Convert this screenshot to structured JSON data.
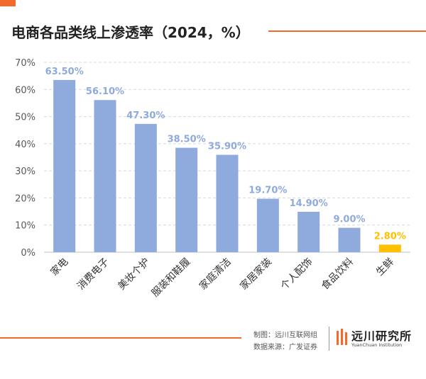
{
  "header": {
    "title": "电商各品类线上渗透率（2024，%）"
  },
  "colors": {
    "accent": "#f26b2b",
    "bar": "#8faadc",
    "bar_highlight": "#ffc000",
    "data_label": "#8faadc",
    "data_label_highlight": "#ffc000",
    "grid": "#d9d9d9",
    "axis_text": "#595959"
  },
  "footer": {
    "credit_line1": "制图：远川互联网组",
    "credit_line2": "数据来源：广发证券",
    "logo_icon": "yuanchuan-logo-icon",
    "logo_name": "远川研究所",
    "logo_sub": "YuanChuan Institution"
  },
  "chart_data": {
    "type": "bar",
    "title": "电商各品类线上渗透率（2024，%）",
    "xlabel": "",
    "ylabel": "",
    "categories": [
      "家电",
      "消费电子",
      "美妆个护",
      "服装和鞋履",
      "家庭清洁",
      "家居家装",
      "个人配饰",
      "食品饮料",
      "生鲜"
    ],
    "values": [
      63.5,
      56.1,
      47.3,
      38.5,
      35.9,
      19.7,
      14.9,
      9.0,
      2.8
    ],
    "data_labels": [
      "63.50%",
      "56.10%",
      "47.30%",
      "38.50%",
      "35.90%",
      "19.70%",
      "14.90%",
      "9.00%",
      "2.80%"
    ],
    "highlight_category": "生鲜",
    "ylim": [
      0,
      70
    ],
    "yticks": [
      0,
      10,
      20,
      30,
      40,
      50,
      60,
      70
    ],
    "ytick_labels": [
      "0%",
      "10%",
      "20%",
      "30%",
      "40%",
      "50%",
      "60%",
      "70%"
    ],
    "grid": true,
    "legend": "none"
  }
}
